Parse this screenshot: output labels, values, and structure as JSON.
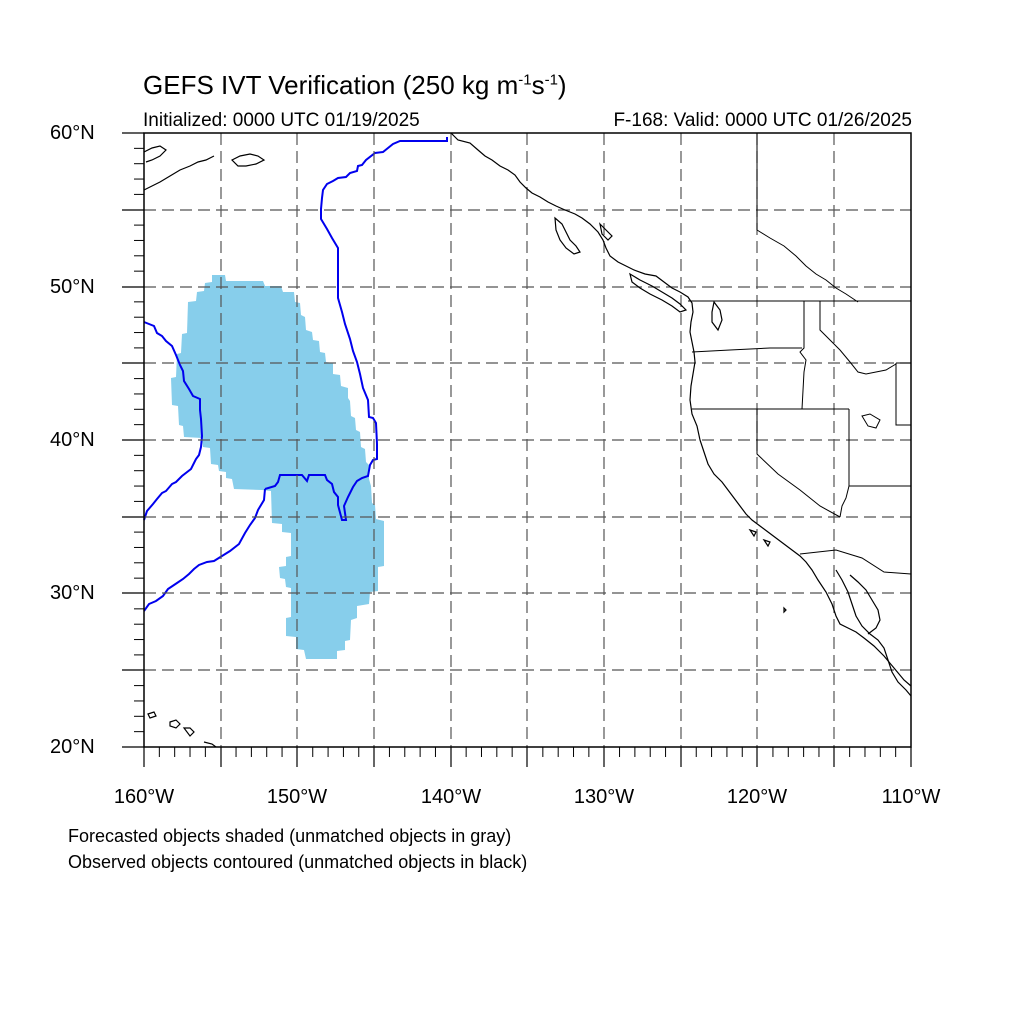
{
  "title": {
    "main": "GEFS IVT Verification (250 kg m",
    "sup1": "-1",
    "mid": "s",
    "sup2": "-1",
    "end": ")"
  },
  "subtitle": {
    "left": "Initialized: 0000 UTC 01/19/2025",
    "right": "F-168: Valid: 0000 UTC 01/26/2025"
  },
  "axes": {
    "lat_labels": [
      "60°N",
      "50°N",
      "40°N",
      "30°N",
      "20°N"
    ],
    "lon_labels": [
      "160°W",
      "150°W",
      "140°W",
      "130°W",
      "120°W",
      "110°W"
    ],
    "lat_range": [
      20,
      60
    ],
    "lon_range": [
      -160,
      -110
    ]
  },
  "legend": {
    "line1": "Forecasted objects shaded (unmatched objects in gray)",
    "line2": "Observed objects contoured (unmatched objects in black)"
  },
  "colors": {
    "forecast_fill": "#87ceeb",
    "observed_contour": "#0000ee",
    "grid": "#555555",
    "coast": "#000000"
  }
}
